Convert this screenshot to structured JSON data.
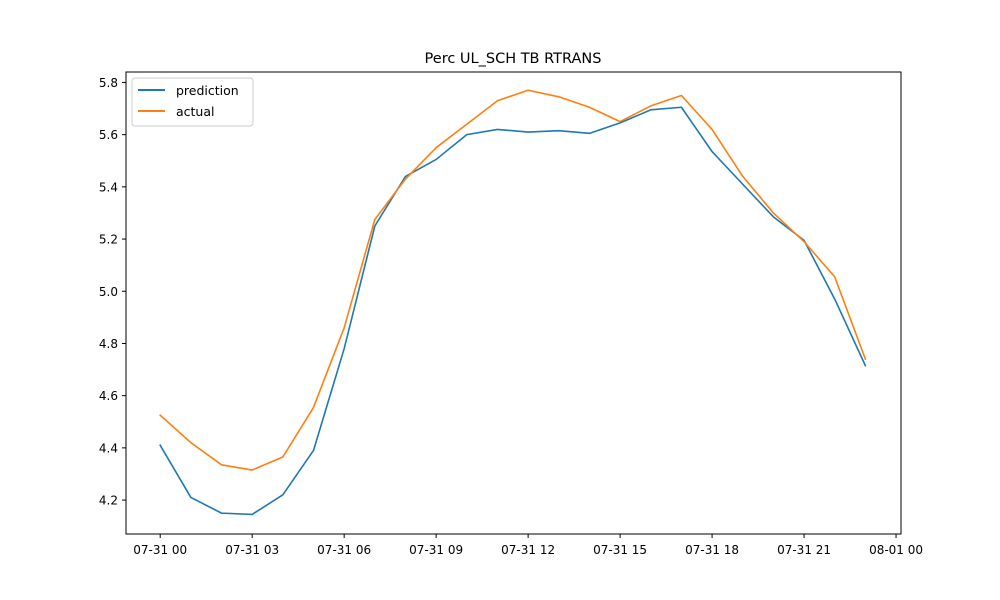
{
  "chart_data": {
    "type": "line",
    "title": "Perc UL_SCH TB RTRANS",
    "xlabel": "",
    "ylabel": "",
    "x": [
      "07-31 00:00",
      "07-31 01:00",
      "07-31 02:00",
      "07-31 03:00",
      "07-31 04:00",
      "07-31 05:00",
      "07-31 06:00",
      "07-31 07:00",
      "07-31 08:00",
      "07-31 09:00",
      "07-31 10:00",
      "07-31 11:00",
      "07-31 12:00",
      "07-31 13:00",
      "07-31 14:00",
      "07-31 15:00",
      "07-31 16:00",
      "07-31 17:00",
      "07-31 18:00",
      "07-31 19:00",
      "07-31 20:00",
      "07-31 21:00",
      "07-31 22:00",
      "07-31 23:00"
    ],
    "series": [
      {
        "name": "prediction",
        "color": "#1f77b4",
        "values": [
          4.41,
          4.21,
          4.15,
          4.145,
          4.22,
          4.39,
          4.78,
          5.25,
          5.44,
          5.505,
          5.6,
          5.62,
          5.61,
          5.615,
          5.605,
          5.645,
          5.695,
          5.705,
          5.535,
          5.41,
          5.285,
          5.195,
          4.97,
          4.715
        ]
      },
      {
        "name": "actual",
        "color": "#ff7f0e",
        "values": [
          4.525,
          4.42,
          4.335,
          4.315,
          4.365,
          4.555,
          4.86,
          5.275,
          5.43,
          5.55,
          5.64,
          5.73,
          5.77,
          5.745,
          5.705,
          5.65,
          5.71,
          5.75,
          5.62,
          5.44,
          5.3,
          5.19,
          5.055,
          4.74
        ]
      }
    ],
    "xticks": [
      "07-31 00",
      "07-31 03",
      "07-31 06",
      "07-31 09",
      "07-31 12",
      "07-31 15",
      "07-31 18",
      "07-31 21",
      "08-01 00"
    ],
    "yticks": [
      "4.2",
      "4.4",
      "4.6",
      "4.8",
      "5.0",
      "5.2",
      "5.4",
      "5.6",
      "5.8"
    ],
    "ylim": [
      4.07,
      5.84
    ],
    "xlim": [
      "07-30 22:52",
      "08-01 00:24"
    ],
    "grid": false,
    "legend_position": "top-left"
  }
}
